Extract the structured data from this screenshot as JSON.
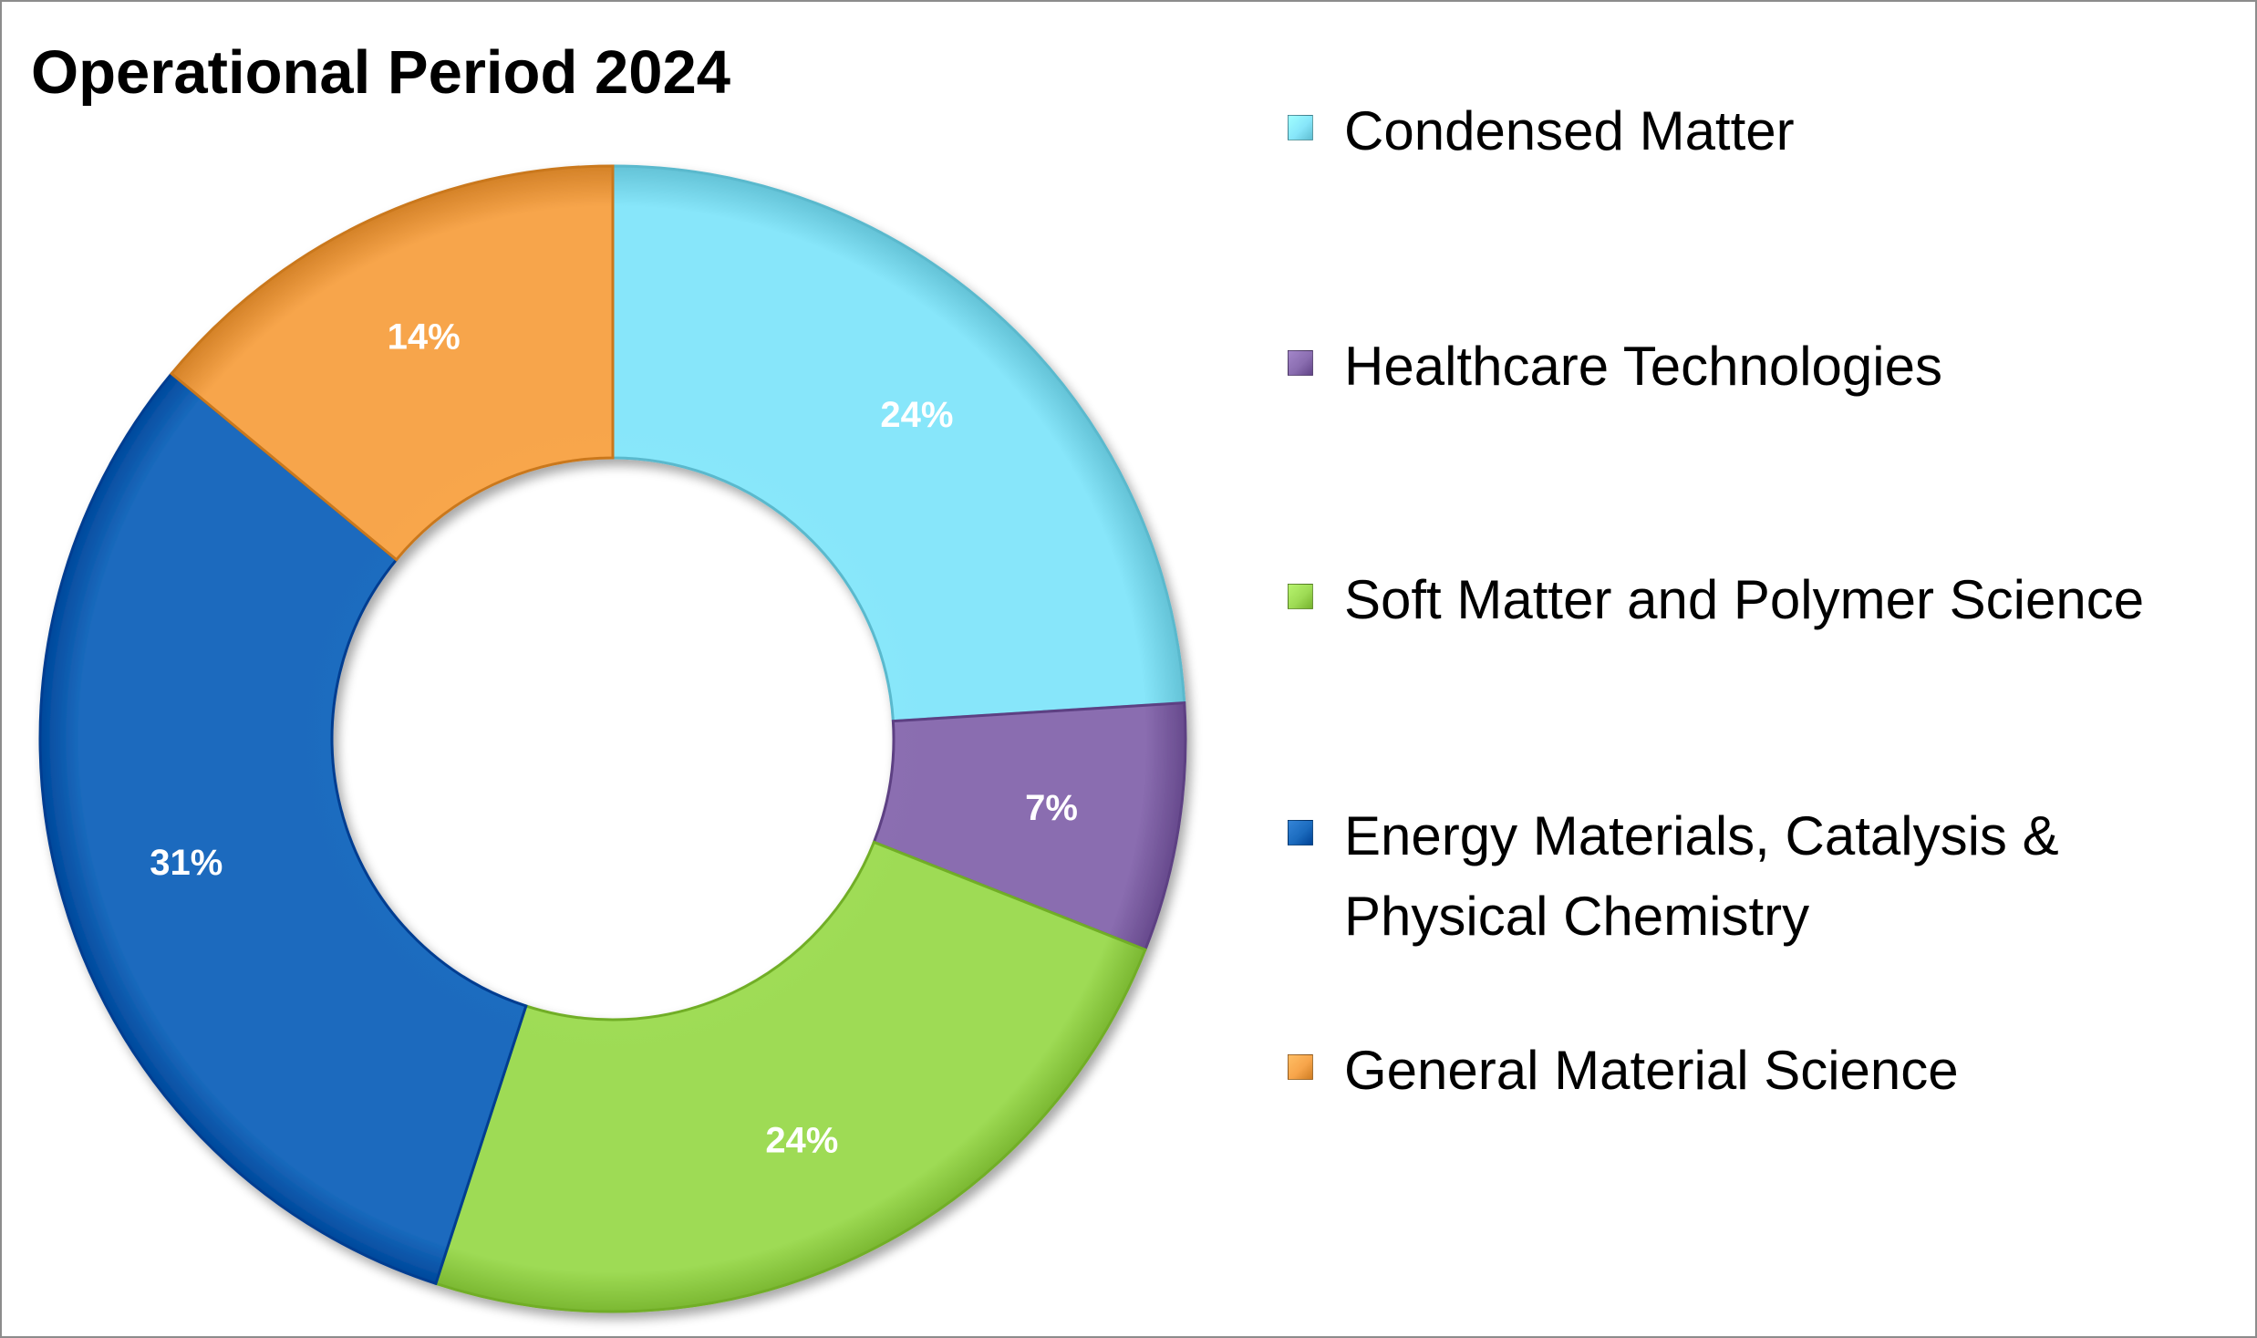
{
  "chart_data": {
    "type": "pie",
    "variant": "donut",
    "title": "Operational Period 2024",
    "legend_position": "right",
    "series": [
      {
        "categories": [
          "Condensed Matter",
          "Healthcare Technologies",
          "Soft Matter and Polymer Science",
          "Energy Materials, Catalysis & Physical Chemistry",
          "General Material Science"
        ],
        "values": [
          24,
          7,
          24,
          31,
          14
        ],
        "labels": [
          "24%",
          "7%",
          "24%",
          "31%",
          "14%"
        ],
        "colors": [
          "#87E6FA",
          "#8A6DB0",
          "#9EDB55",
          "#1B6BBE",
          "#F7A54B"
        ]
      }
    ]
  }
}
